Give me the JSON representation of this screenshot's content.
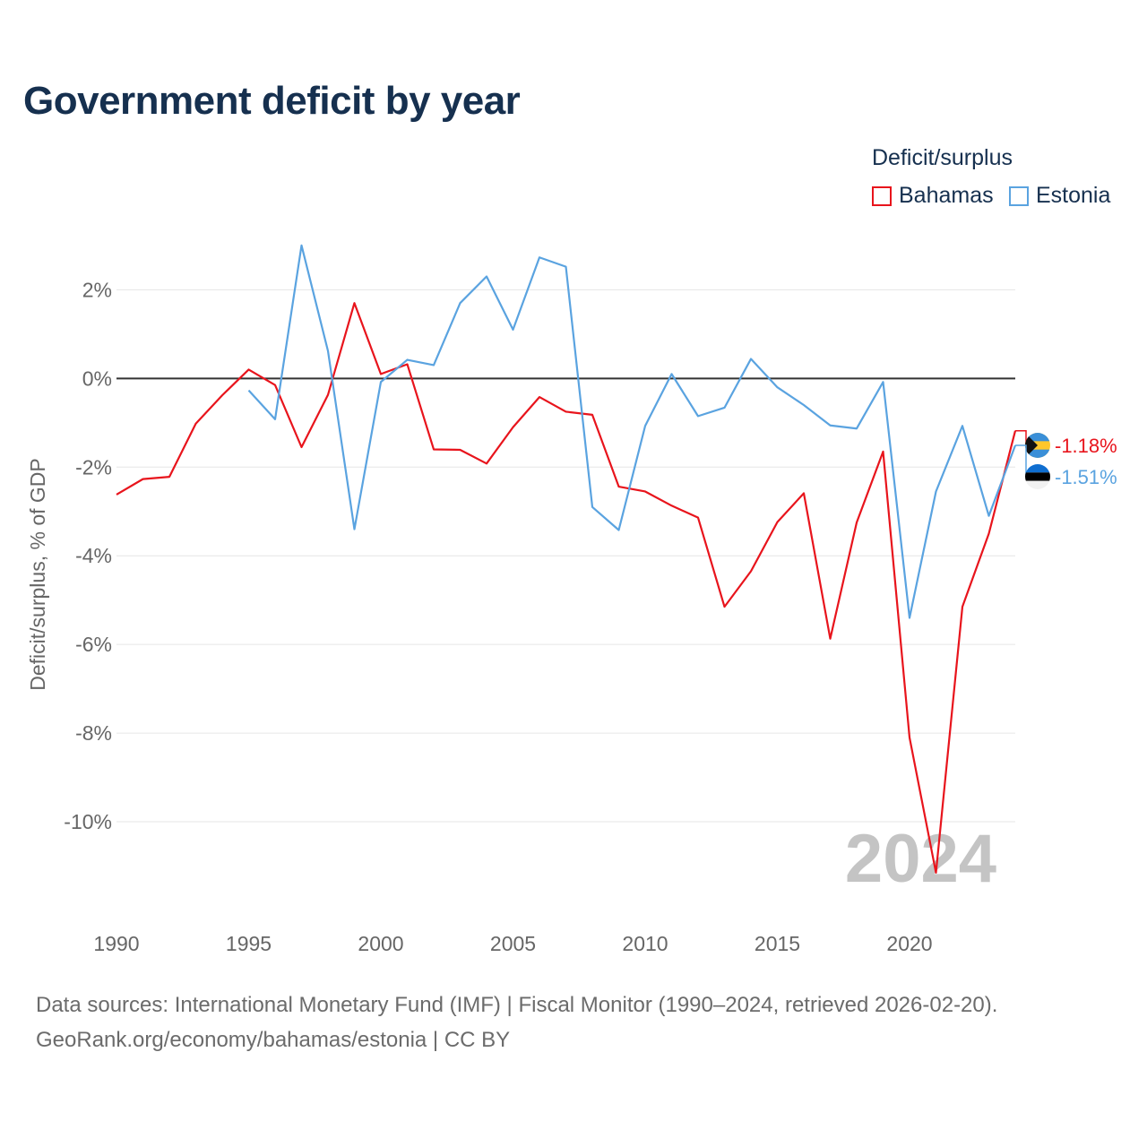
{
  "header": {
    "title": "Government deficit by year"
  },
  "legend": {
    "title": "Deficit/surplus",
    "items": [
      {
        "label": "Bahamas",
        "color": "#e8141c"
      },
      {
        "label": "Estonia",
        "color": "#5aa3e0"
      }
    ]
  },
  "year_watermark": "2024",
  "source": {
    "line1": "Data sources: International Monetary Fund (IMF) | Fiscal Monitor (1990–2024, retrieved 2026-02-20).",
    "line2": "GeoRank.org/economy/bahamas/estonia | CC BY"
  },
  "chart_data": {
    "type": "line",
    "title": "Government deficit by year",
    "xlabel": "",
    "ylabel": "Deficit/surplus, % of GDP",
    "xlim": [
      1990,
      2024
    ],
    "ylim": [
      -12,
      3.2
    ],
    "x_ticks": [
      1990,
      1995,
      2000,
      2005,
      2010,
      2015,
      2020
    ],
    "x_tick_labels": [
      "1990",
      "1995",
      "2000",
      "2005",
      "2010",
      "2015",
      "2020"
    ],
    "y_ticks": [
      2,
      0,
      -2,
      -4,
      -6,
      -8,
      -10
    ],
    "y_tick_labels": [
      "2%",
      "0%",
      "-2%",
      "-4%",
      "-6%",
      "-8%",
      "-10%"
    ],
    "zero_line": true,
    "grid": true,
    "legend_position": "top-right",
    "series": [
      {
        "name": "Bahamas",
        "color": "#e8141c",
        "end_label": "-1.18%",
        "x": [
          1990,
          1991,
          1992,
          1993,
          1994,
          1995,
          1996,
          1997,
          1998,
          1999,
          2000,
          2001,
          2002,
          2003,
          2004,
          2005,
          2006,
          2007,
          2008,
          2009,
          2010,
          2011,
          2012,
          2013,
          2014,
          2015,
          2016,
          2017,
          2018,
          2019,
          2020,
          2021,
          2022,
          2023,
          2024
        ],
        "values": [
          -2.62,
          -2.27,
          -2.22,
          -1.02,
          -0.38,
          0.2,
          -0.15,
          -1.55,
          -0.37,
          1.7,
          0.1,
          0.32,
          -1.6,
          -1.61,
          -1.92,
          -1.1,
          -0.42,
          -0.75,
          -0.82,
          -2.44,
          -2.55,
          -2.87,
          -3.14,
          -5.15,
          -4.35,
          -3.24,
          -2.59,
          -5.87,
          -3.25,
          -1.65,
          -8.1,
          -11.15,
          -5.15,
          -3.5,
          -1.18
        ]
      },
      {
        "name": "Estonia",
        "color": "#5aa3e0",
        "end_label": "-1.51%",
        "x": [
          1995,
          1996,
          1997,
          1998,
          1999,
          2000,
          2001,
          2002,
          2003,
          2004,
          2005,
          2006,
          2007,
          2008,
          2009,
          2010,
          2011,
          2012,
          2013,
          2014,
          2015,
          2016,
          2017,
          2018,
          2019,
          2020,
          2021,
          2022,
          2023,
          2024
        ],
        "values": [
          -0.27,
          -0.92,
          3.0,
          0.62,
          -3.4,
          -0.08,
          0.42,
          0.3,
          1.7,
          2.3,
          1.1,
          2.73,
          2.52,
          -2.9,
          -3.42,
          -1.07,
          0.1,
          -0.85,
          -0.66,
          0.44,
          -0.2,
          -0.6,
          -1.06,
          -1.13,
          -0.08,
          -5.4,
          -2.55,
          -1.07,
          -3.1,
          -1.51
        ]
      }
    ]
  }
}
